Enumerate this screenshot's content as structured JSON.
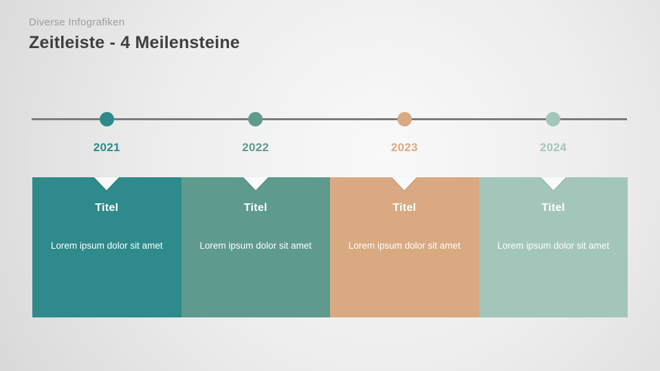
{
  "slide": {
    "eyebrow": "Diverse Infografiken",
    "title": "Zeitleiste - 4 Meilensteine"
  },
  "timeline": {
    "line_color": "#7b7b7b",
    "milestones": [
      {
        "year": "2021",
        "color": "#2E8A8B",
        "title": "Titel",
        "description": "Lorem ipsum dolor sit amet"
      },
      {
        "year": "2022",
        "color": "#5E9A8D",
        "title": "Titel",
        "description": "Lorem ipsum dolor sit amet"
      },
      {
        "year": "2023",
        "color": "#D9A982",
        "title": "Titel",
        "description": "Lorem ipsum dolor sit amet"
      },
      {
        "year": "2024",
        "color": "#A3C6BA",
        "title": "Titel",
        "description": "Lorem ipsum dolor sit amet"
      }
    ]
  }
}
